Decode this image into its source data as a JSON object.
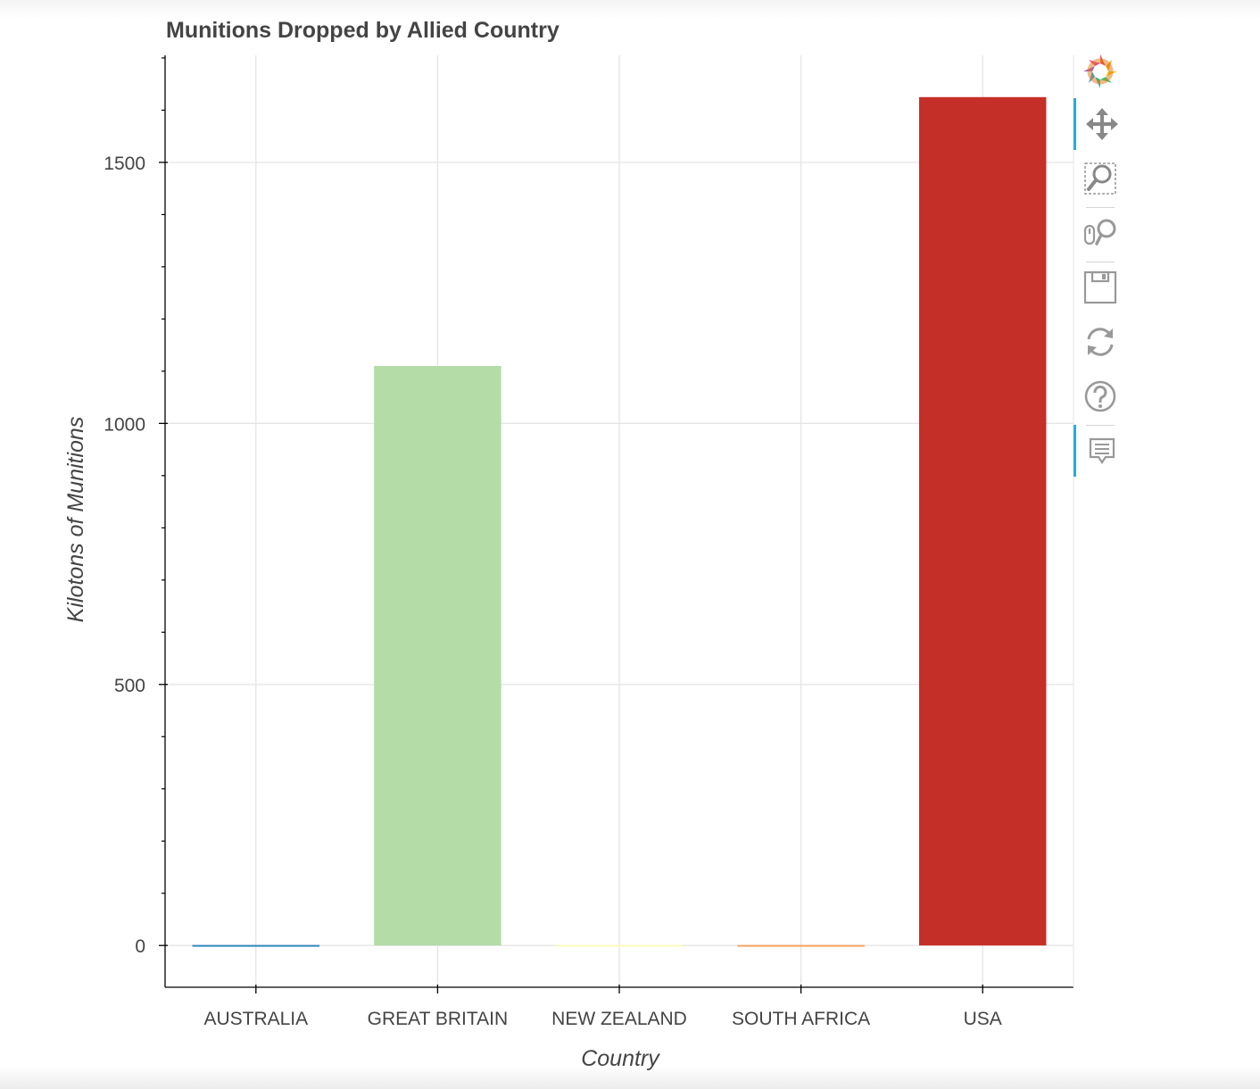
{
  "chart_data": {
    "type": "bar",
    "title": "Munitions Dropped by Allied Country",
    "xlabel": "Country",
    "ylabel": "Kilotons of Munitions",
    "categories": [
      "AUSTRALIA",
      "GREAT BRITAIN",
      "NEW ZEALAND",
      "SOUTH AFRICA",
      "USA"
    ],
    "values": [
      1,
      1110,
      1,
      1,
      1625
    ],
    "colors": [
      "#3288bd",
      "#b3dca7",
      "#fffbbf",
      "#f4a460",
      "#c42f28"
    ],
    "ylim": [
      -80,
      1705
    ],
    "yticks": [
      0,
      500,
      1000,
      1500
    ],
    "grid": true,
    "legend": "none"
  },
  "toolbar": {
    "tools": [
      {
        "name": "bokeh-logo",
        "active": false
      },
      {
        "name": "pan-tool",
        "active": true
      },
      {
        "name": "box-zoom-tool",
        "active": false
      },
      {
        "name": "wheel-zoom-tool",
        "active": false
      },
      {
        "name": "save-tool",
        "active": false
      },
      {
        "name": "reset-tool",
        "active": false
      },
      {
        "name": "help-tool",
        "active": false
      },
      {
        "name": "hover-tool",
        "active": true
      }
    ]
  }
}
